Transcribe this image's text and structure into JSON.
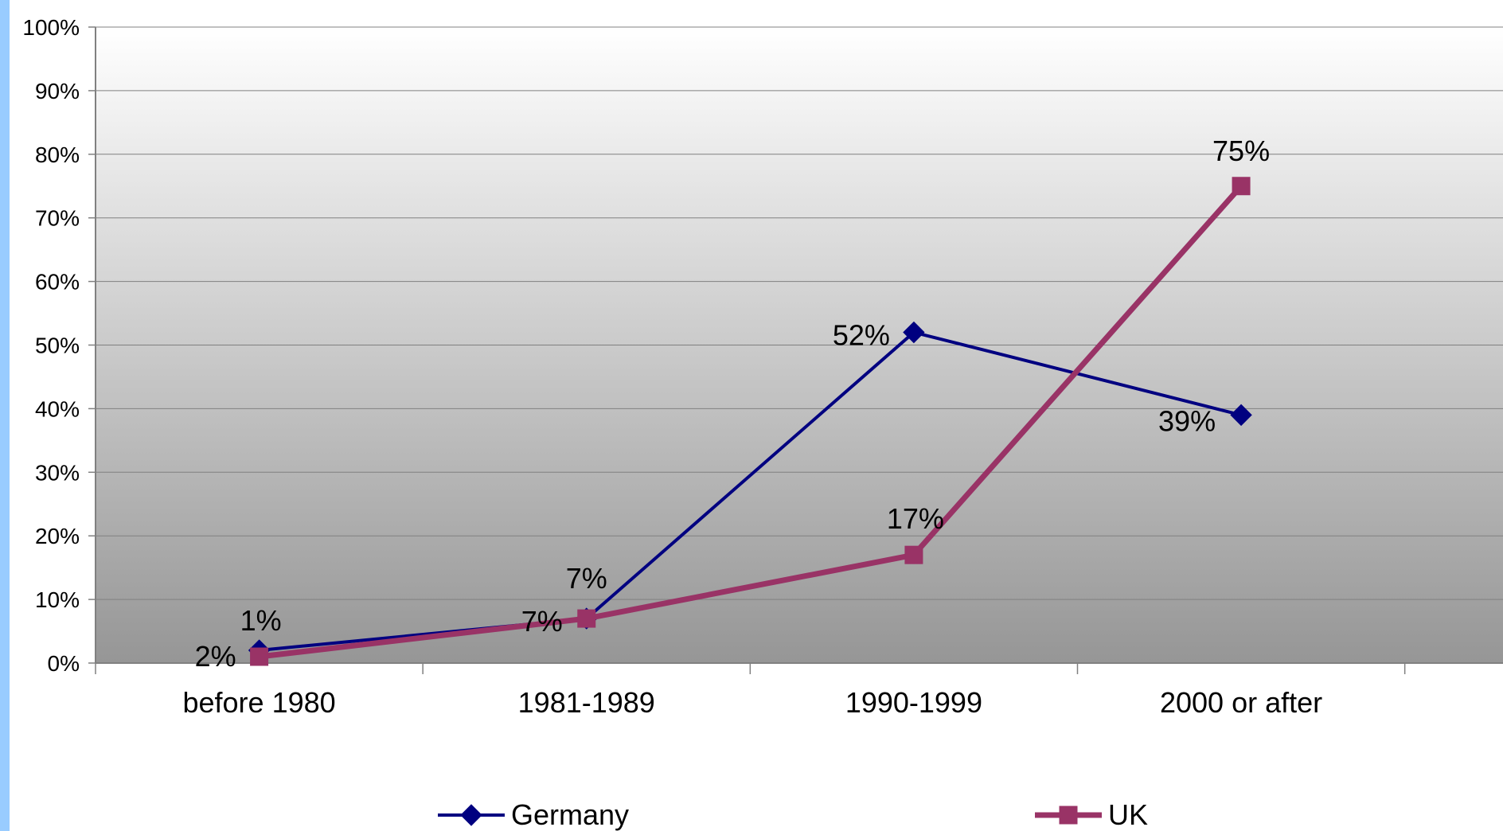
{
  "chart_data": {
    "type": "line",
    "title": "",
    "xlabel": "",
    "ylabel": "",
    "categories": [
      "before 1980",
      "1981-1989",
      "1990-1999",
      "2000 or after"
    ],
    "ylim": [
      0,
      100
    ],
    "yticks": [
      "0%",
      "10%",
      "20%",
      "30%",
      "40%",
      "50%",
      "60%",
      "70%",
      "80%",
      "90%",
      "100%"
    ],
    "grid": true,
    "legend_position": "bottom",
    "series": [
      {
        "name": "Germany",
        "values": [
          2,
          7,
          52,
          39
        ],
        "labels": [
          "2%",
          "7%",
          "52%",
          "39%"
        ],
        "color": "#000080",
        "marker": "diamond"
      },
      {
        "name": "UK",
        "values": [
          1,
          7,
          17,
          75
        ],
        "labels": [
          "1%",
          "7%",
          "17%",
          "75%"
        ],
        "color": "#993366",
        "marker": "square"
      }
    ]
  },
  "colors": {
    "left_strip": "#99ccff",
    "plot_gradient_top": "#ffffff",
    "plot_gradient_bottom": "#969696",
    "gridline": "#808080"
  }
}
